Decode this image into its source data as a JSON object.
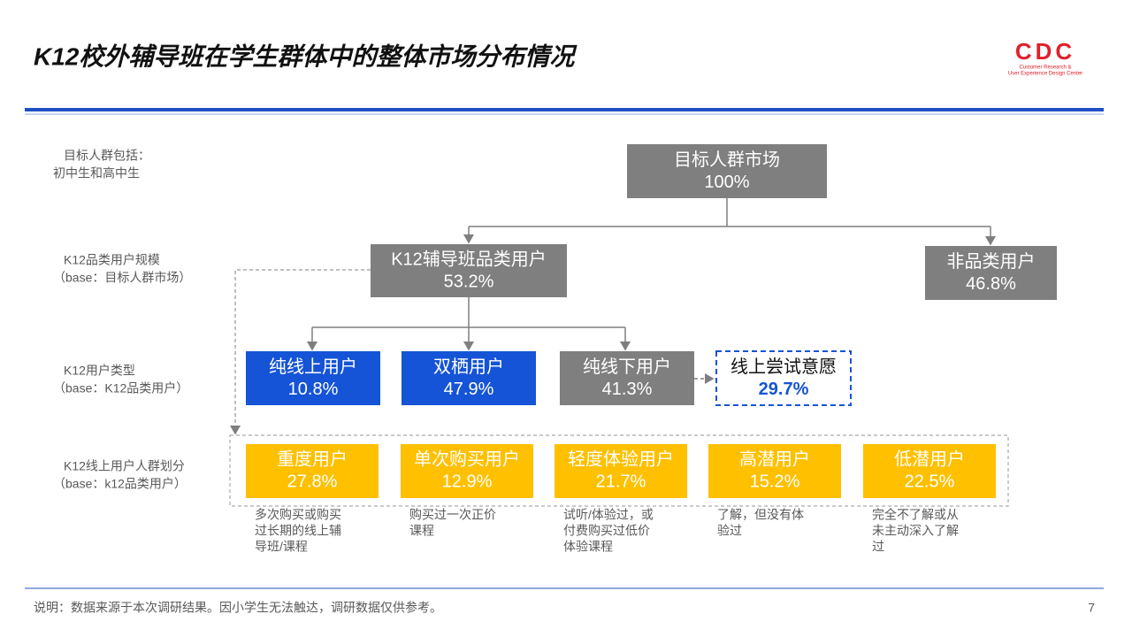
{
  "header": {
    "title": "K12校外辅导班在学生群体中的整体市场分布情况",
    "logo": {
      "mark": "CDC",
      "line1": "Customer Research &",
      "line2": "User Experience Design Center"
    }
  },
  "row_labels": [
    [
      "目标人群包括：",
      "初中生和高中生"
    ],
    [
      "K12品类用户规模",
      "（base：目标人群市场）"
    ],
    [
      "K12用户类型",
      "（base：K12品类用户）"
    ],
    [
      "K12线上用户人群划分",
      "（base：k12品类用户）"
    ]
  ],
  "nodes": [
    {
      "label": "目标人群市场",
      "value": "100%"
    },
    {
      "label": "K12辅导班品类用户",
      "value": "53.2%"
    },
    {
      "label": "非品类用户",
      "value": "46.8%"
    },
    {
      "label": "纯线上用户",
      "value": "10.8%"
    },
    {
      "label": "双栖用户",
      "value": "47.9%"
    },
    {
      "label": "纯线下用户",
      "value": "41.3%"
    },
    {
      "label": "线上尝试意愿",
      "value": "29.7%"
    }
  ],
  "segments": [
    {
      "label": "重度用户",
      "value": "27.8%",
      "desc": [
        "多次购买或购买",
        "过长期的线上辅",
        "导班/课程"
      ]
    },
    {
      "label": "单次购买用户",
      "value": "12.9%",
      "desc": [
        "购买过一次正价",
        "课程"
      ]
    },
    {
      "label": "轻度体验用户",
      "value": "21.7%",
      "desc": [
        "试听/体验过，或",
        "付费购买过低价",
        "体验课程"
      ]
    },
    {
      "label": "高潜用户",
      "value": "15.2%",
      "desc": [
        "了解，但没有体",
        "验过"
      ]
    },
    {
      "label": "低潜用户",
      "value": "22.5%",
      "desc": [
        "完全不了解或从",
        "未主动深入了解",
        "过"
      ]
    }
  ],
  "footer": {
    "note": "说明：数据来源于本次调研结果。因小学生无法触达，调研数据仅供参考。",
    "page": "7"
  }
}
